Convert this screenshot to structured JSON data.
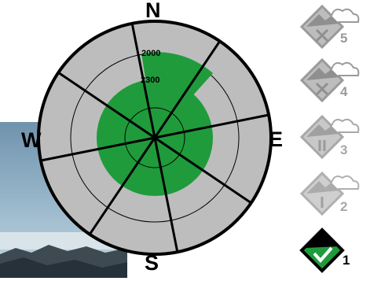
{
  "rose": {
    "directions": {
      "north": "N",
      "south": "S",
      "west": "W",
      "east": "E"
    },
    "elevation_labels": [
      "2000",
      "2300"
    ],
    "colors": {
      "outer_ring": "#bdbdbd",
      "safe_zone": "#1f9b3c",
      "outline": "#000000"
    }
  },
  "danger_scale": {
    "levels": [
      {
        "number": "5",
        "icon": "x-mark-icon",
        "color": "#9a9a9a"
      },
      {
        "number": "4",
        "icon": "x-mark-icon",
        "color": "#9a9a9a"
      },
      {
        "number": "3",
        "icon": "double-bar-icon",
        "color": "#a8a8a8"
      },
      {
        "number": "2",
        "icon": "single-bar-icon",
        "color": "#b0b0b0"
      },
      {
        "number": "1",
        "icon": "check-mark-icon",
        "color": "#1f9b3c"
      }
    ]
  }
}
